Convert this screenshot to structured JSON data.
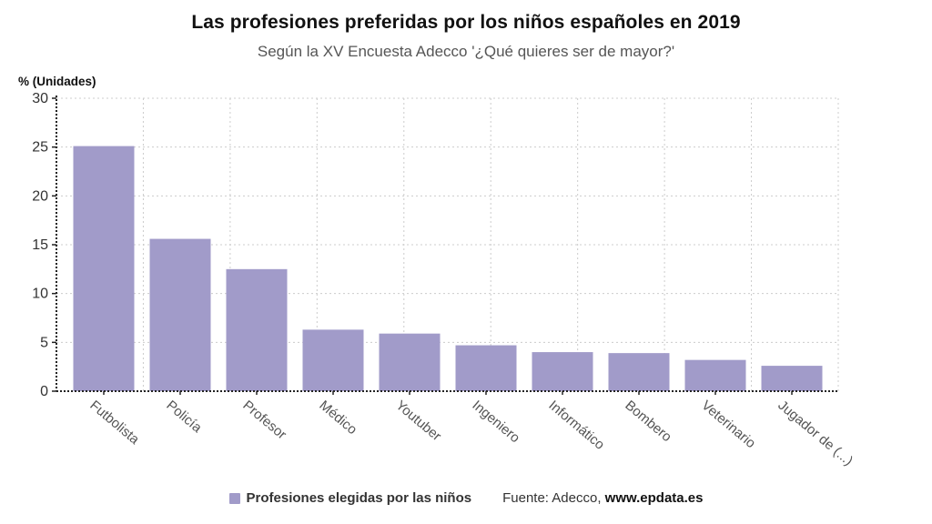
{
  "header": {
    "title": "Las profesiones preferidas por los niños españoles en 2019",
    "subtitle": "Según la XV Encuesta Adecco '¿Qué quieres ser de mayor?'"
  },
  "chart_data": {
    "type": "bar",
    "title": "Las profesiones preferidas por los niños españoles en 2019",
    "subtitle": "Según la XV Encuesta Adecco '¿Qué quieres ser de mayor?'",
    "categories": [
      "Futbolista",
      "Policía",
      "Profesor",
      "Médico",
      "Youtuber",
      "Ingeniero",
      "Informático",
      "Bombero",
      "Veterinario",
      "Jugador de (...)"
    ],
    "values": [
      25.1,
      15.6,
      12.5,
      6.3,
      5.9,
      4.7,
      4.0,
      3.9,
      3.2,
      2.6
    ],
    "series_name": "Profesiones elegidas por las niños",
    "xlabel": "",
    "ylabel": "% (Unidades)",
    "ylim": [
      0,
      30
    ],
    "yticks": [
      0,
      5,
      10,
      15,
      20,
      25,
      30
    ],
    "grid": true,
    "legend_position": "bottom",
    "bar_color": "#a19bc9"
  },
  "legend": {
    "label": "Profesiones elegidas por las niños",
    "swatch_color": "#a19bc9"
  },
  "source": {
    "prefix": "Fuente: Adecco, ",
    "site": "www.epdata.es"
  },
  "colors": {
    "axis": "#222222",
    "grid": "#cccccc",
    "tick_label": "#333333",
    "category_label": "#555555"
  }
}
